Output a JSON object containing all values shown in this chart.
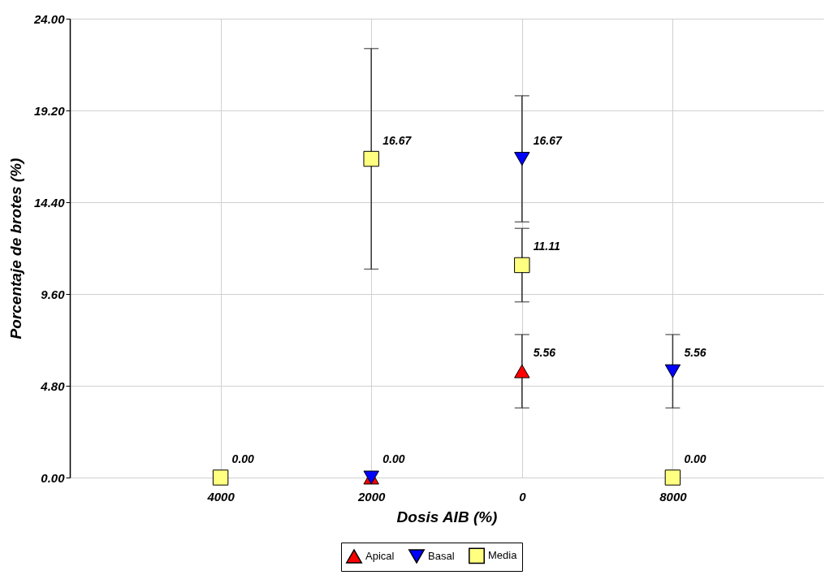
{
  "chart_data": {
    "type": "scatter",
    "xlabel": "Dosis AIB (%)",
    "ylabel": "Porcentaje de brotes (%)",
    "categories": [
      "4000",
      "2000",
      "0",
      "8000"
    ],
    "ylim": [
      0,
      24
    ],
    "yticks": [
      {
        "value": 0,
        "label": "0.00"
      },
      {
        "value": 4.8,
        "label": "4.80"
      },
      {
        "value": 9.6,
        "label": "9.60"
      },
      {
        "value": 14.4,
        "label": "14.40"
      },
      {
        "value": 19.2,
        "label": "19.20"
      },
      {
        "value": 24,
        "label": "24.00"
      }
    ],
    "grid": true,
    "legend": "bottom",
    "series": [
      {
        "name": "Apical",
        "color": "#ff0000",
        "marker": "triangle",
        "values": [
          null,
          0,
          5.56,
          null
        ],
        "errors": [
          null,
          null,
          1.92,
          null
        ],
        "value_labels": [
          null,
          null,
          "5.56",
          null
        ]
      },
      {
        "name": "Basal",
        "color": "#0000ff",
        "marker": "triangle-down",
        "values": [
          null,
          0,
          16.67,
          5.56
        ],
        "errors": [
          null,
          null,
          3.3,
          1.92
        ],
        "value_labels": [
          null,
          "0.00",
          "16.67",
          "5.56"
        ]
      },
      {
        "name": "Media",
        "color": "#ffff80",
        "marker": "square",
        "values": [
          0,
          16.67,
          11.11,
          0
        ],
        "errors": [
          null,
          5.77,
          1.92,
          null
        ],
        "value_labels": [
          "0.00",
          "16.67",
          "11.11",
          "0.00"
        ]
      }
    ]
  }
}
